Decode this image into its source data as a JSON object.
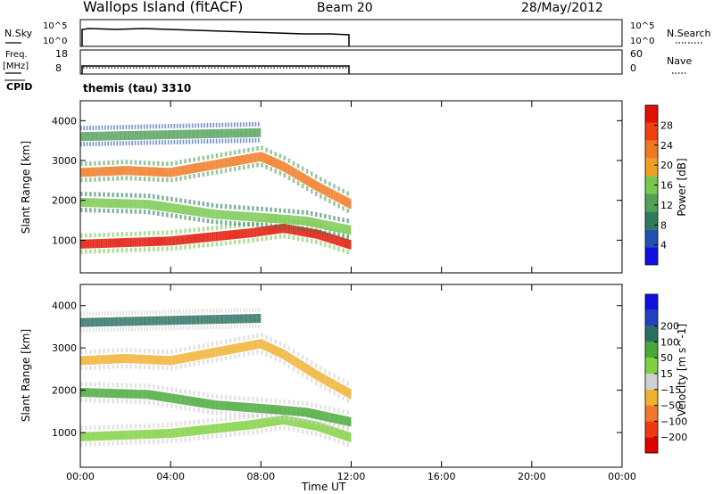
{
  "header": {
    "station": "Wallops Island (fitACF)",
    "beam": "Beam 20",
    "date": "28/May/2012"
  },
  "noise_panel": {
    "left_label": "N.Sky",
    "left_ticks": [
      "10^5",
      "10^0"
    ],
    "right_label": "N.Search",
    "right_ticks": [
      "10^5",
      "10^0"
    ]
  },
  "freq_panel": {
    "left_label_1": "Freq.",
    "left_label_2": "[MHz]",
    "left_ticks": [
      "18",
      "8"
    ],
    "right_label": "Nave",
    "right_ticks": [
      "60",
      "0"
    ]
  },
  "cpid": {
    "label": "CPID",
    "value": "themis (tau) 3310"
  },
  "colors": {
    "power_scale": [
      "#1010e0",
      "#2050b0",
      "#2e7d5a",
      "#52a05a",
      "#78c850",
      "#f0a020",
      "#f07820",
      "#f04010",
      "#e01000"
    ],
    "velocity_scale": [
      "#e00000",
      "#f03810",
      "#f07828",
      "#f0b030",
      "#d0d0d0",
      "#80d040",
      "#48a838",
      "#2a7060",
      "#2040c0",
      "#1010e0"
    ]
  },
  "chart_data": [
    {
      "type": "heatmap",
      "title": "",
      "xlabel": "Time UT",
      "ylabel": "Slant Range [km]",
      "xlim": [
        "00:00",
        "24:00"
      ],
      "x_ticks": [
        "00:00",
        "04:00",
        "08:00",
        "12:00",
        "16:00",
        "20:00",
        "00:00"
      ],
      "ylim": [
        180,
        4500
      ],
      "y_ticks": [
        1000,
        2000,
        3000,
        4000
      ],
      "data_end_ut": "12:00",
      "colorbar": {
        "label": "Power [dB]",
        "range": [
          0,
          32
        ],
        "ticks": [
          4,
          8,
          12,
          16,
          20,
          24,
          28
        ]
      },
      "echo_bands": [
        {
          "start_ut": "00:00",
          "end_ut": "12:00",
          "range_km": [
            [
              0,
              900
            ],
            [
              4,
              980
            ],
            [
              7.5,
              1180
            ],
            [
              9,
              1300
            ],
            [
              10.5,
              1150
            ],
            [
              12,
              880
            ]
          ],
          "peak_power_db": 30
        },
        {
          "start_ut": "00:00",
          "end_ut": "12:00",
          "range_km": [
            [
              0,
              1950
            ],
            [
              3,
              1900
            ],
            [
              6,
              1650
            ],
            [
              8.5,
              1550
            ],
            [
              10,
              1480
            ],
            [
              12,
              1250
            ]
          ],
          "peak_power_db": 16
        },
        {
          "start_ut": "00:00",
          "end_ut": "12:00",
          "range_km": [
            [
              0,
              2700
            ],
            [
              2,
              2750
            ],
            [
              4,
              2700
            ],
            [
              6,
              2900
            ],
            [
              8,
              3100
            ],
            [
              9,
              2850
            ],
            [
              10.5,
              2350
            ],
            [
              12,
              1900
            ]
          ],
          "peak_power_db": 24
        },
        {
          "start_ut": "00:00",
          "end_ut": "08:00",
          "range_km": [
            [
              0,
              3600
            ],
            [
              4,
              3650
            ],
            [
              8,
              3700
            ]
          ],
          "peak_power_db": 12
        }
      ]
    },
    {
      "type": "heatmap",
      "title": "",
      "xlabel": "Time UT",
      "ylabel": "Slant Range [km]",
      "xlim": [
        "00:00",
        "24:00"
      ],
      "x_ticks": [
        "00:00",
        "04:00",
        "08:00",
        "12:00",
        "16:00",
        "20:00",
        "00:00"
      ],
      "ylim": [
        180,
        4500
      ],
      "y_ticks": [
        1000,
        2000,
        3000,
        4000
      ],
      "data_end_ut": "12:00",
      "colorbar": {
        "label": "Velocity [m s^-1]",
        "ticks": [
          -200,
          -100,
          -50,
          -15,
          15,
          50,
          100,
          200
        ]
      },
      "echo_bands": [
        {
          "start_ut": "00:00",
          "end_ut": "12:00",
          "range_km": [
            [
              0,
              900
            ],
            [
              4,
              980
            ],
            [
              7.5,
              1180
            ],
            [
              9,
              1300
            ],
            [
              10.5,
              1150
            ],
            [
              12,
              880
            ]
          ],
          "velocity_ms": 0
        },
        {
          "start_ut": "00:00",
          "end_ut": "12:00",
          "range_km": [
            [
              0,
              1950
            ],
            [
              3,
              1900
            ],
            [
              6,
              1650
            ],
            [
              8.5,
              1550
            ],
            [
              10,
              1480
            ],
            [
              12,
              1250
            ]
          ],
          "velocity_ms": 40
        },
        {
          "start_ut": "00:00",
          "end_ut": "12:00",
          "range_km": [
            [
              0,
              2700
            ],
            [
              2,
              2750
            ],
            [
              4,
              2700
            ],
            [
              6,
              2900
            ],
            [
              8,
              3100
            ],
            [
              9,
              2850
            ],
            [
              10.5,
              2350
            ],
            [
              12,
              1900
            ]
          ],
          "velocity_ms": -20
        },
        {
          "start_ut": "00:00",
          "end_ut": "08:00",
          "range_km": [
            [
              0,
              3600
            ],
            [
              4,
              3650
            ],
            [
              8,
              3700
            ]
          ],
          "velocity_ms": 60
        }
      ]
    }
  ]
}
